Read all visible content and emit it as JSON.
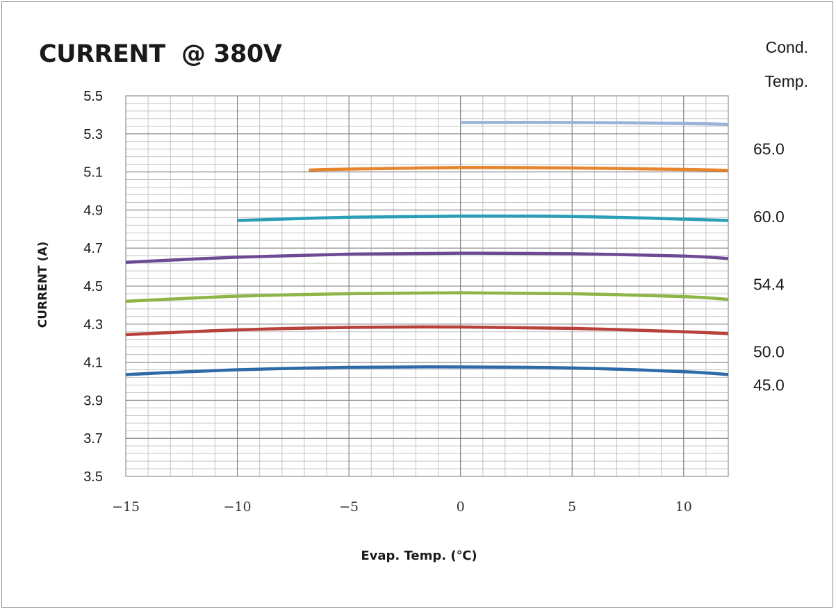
{
  "chart_data": {
    "type": "line",
    "title": "CURRENT  @ 380V",
    "xlabel": "Evap. Temp. (℃)",
    "ylabel": "CURRENT (A)",
    "legend_title_line1": "Cond.",
    "legend_title_line2": "Temp.",
    "xlim": [
      -15,
      12
    ],
    "ylim": [
      3.5,
      5.5
    ],
    "x_ticks": [
      -15,
      -10,
      -5,
      0,
      5,
      10
    ],
    "x_tick_labels": [
      "−15",
      "−10",
      "−5",
      "0",
      "5",
      "10"
    ],
    "y_ticks": [
      3.5,
      3.7,
      3.9,
      4.1,
      4.3,
      4.5,
      4.7,
      4.9,
      5.1,
      5.3,
      5.5
    ],
    "y_tick_labels": [
      "3.5",
      "3.7",
      "3.9",
      "4.1",
      "4.3",
      "4.5",
      "4.7",
      "4.9",
      "5.1",
      "5.3",
      "5.5"
    ],
    "grid": true,
    "series": [
      {
        "color": "#2f6aa8",
        "x": [
          -15,
          -10,
          -5,
          0,
          5,
          10,
          12
        ],
        "values": [
          4.035,
          4.06,
          4.073,
          4.075,
          4.07,
          4.05,
          4.035
        ]
      },
      {
        "color": "#b8413b",
        "x": [
          -15,
          -10,
          -5,
          0,
          5,
          10,
          12
        ],
        "values": [
          4.245,
          4.27,
          4.283,
          4.285,
          4.278,
          4.26,
          4.25
        ]
      },
      {
        "color": "#8fb447",
        "x": [
          -15,
          -10,
          -5,
          0,
          5,
          10,
          12
        ],
        "values": [
          4.42,
          4.447,
          4.46,
          4.465,
          4.46,
          4.445,
          4.43
        ]
      },
      {
        "color": "#6c4b94",
        "x": [
          -15,
          -10,
          -5,
          0,
          5,
          10,
          12
        ],
        "values": [
          4.625,
          4.652,
          4.668,
          4.673,
          4.67,
          4.658,
          4.645
        ]
      },
      {
        "color": "#2a9eb6",
        "x": [
          -10,
          -5,
          0,
          5,
          10,
          12
        ],
        "values": [
          4.845,
          4.862,
          4.868,
          4.866,
          4.852,
          4.845
        ]
      },
      {
        "color": "#e8842c",
        "x": [
          -6.8,
          -5,
          0,
          5,
          10,
          12
        ],
        "values": [
          5.11,
          5.115,
          5.123,
          5.121,
          5.113,
          5.108
        ]
      },
      {
        "color": "#97b3d8",
        "x": [
          0,
          5,
          10,
          12
        ],
        "values": [
          5.36,
          5.36,
          5.355,
          5.35
        ]
      }
    ],
    "series_labels": [
      {
        "text": "65.0",
        "y": 5.22
      },
      {
        "text": "60.0",
        "y": 4.865
      },
      {
        "text": "54.4",
        "y": 4.51
      },
      {
        "text": "50.0",
        "y": 4.155
      },
      {
        "text": "45.0",
        "y": 3.98
      }
    ]
  }
}
